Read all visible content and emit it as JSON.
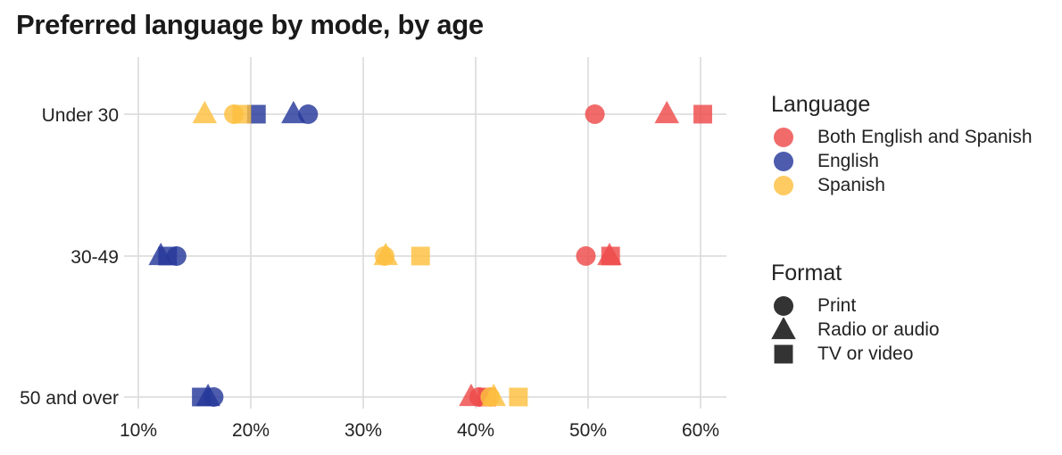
{
  "chart_data": {
    "type": "scatter",
    "title": "Preferred language by mode, by age",
    "xlabel": "",
    "ylabel": "",
    "xlim": [
      10,
      62
    ],
    "x_ticks": [
      10,
      20,
      30,
      40,
      50,
      60
    ],
    "x_tick_labels": [
      "10%",
      "20%",
      "30%",
      "40%",
      "50%",
      "60%"
    ],
    "categories": [
      "Under 30",
      "30-49",
      "50 and over"
    ],
    "grid": true,
    "legend_placement": "right",
    "color_legend": {
      "title": "Language",
      "entries": [
        {
          "name": "Both English and Spanish",
          "color": "#EE4A4A"
        },
        {
          "name": "English",
          "color": "#26389A"
        },
        {
          "name": "Spanish",
          "color": "#FDC03F"
        }
      ]
    },
    "shape_legend": {
      "title": "Format",
      "entries": [
        {
          "name": "Print",
          "shape": "circle"
        },
        {
          "name": "Radio or audio",
          "shape": "triangle"
        },
        {
          "name": "TV or video",
          "shape": "square"
        }
      ]
    },
    "series": [
      {
        "language": "Both English and Spanish",
        "format": "Print",
        "values": [
          50.6,
          49.8,
          40.3
        ]
      },
      {
        "language": "Both English and Spanish",
        "format": "Radio or audio",
        "values": [
          57.0,
          51.9,
          39.6
        ]
      },
      {
        "language": "Both English and Spanish",
        "format": "TV or video",
        "values": [
          60.2,
          52.0,
          41.0
        ]
      },
      {
        "language": "English",
        "format": "Print",
        "values": [
          25.1,
          13.4,
          16.7
        ]
      },
      {
        "language": "English",
        "format": "Radio or audio",
        "values": [
          23.8,
          12.0,
          16.2
        ]
      },
      {
        "language": "English",
        "format": "TV or video",
        "values": [
          20.5,
          12.6,
          15.6
        ]
      },
      {
        "language": "Spanish",
        "format": "Print",
        "values": [
          18.5,
          31.9,
          41.3
        ]
      },
      {
        "language": "Spanish",
        "format": "Radio or audio",
        "values": [
          15.9,
          32.0,
          41.6
        ]
      },
      {
        "language": "Spanish",
        "format": "TV or video",
        "values": [
          19.2,
          35.1,
          43.8
        ]
      }
    ]
  }
}
